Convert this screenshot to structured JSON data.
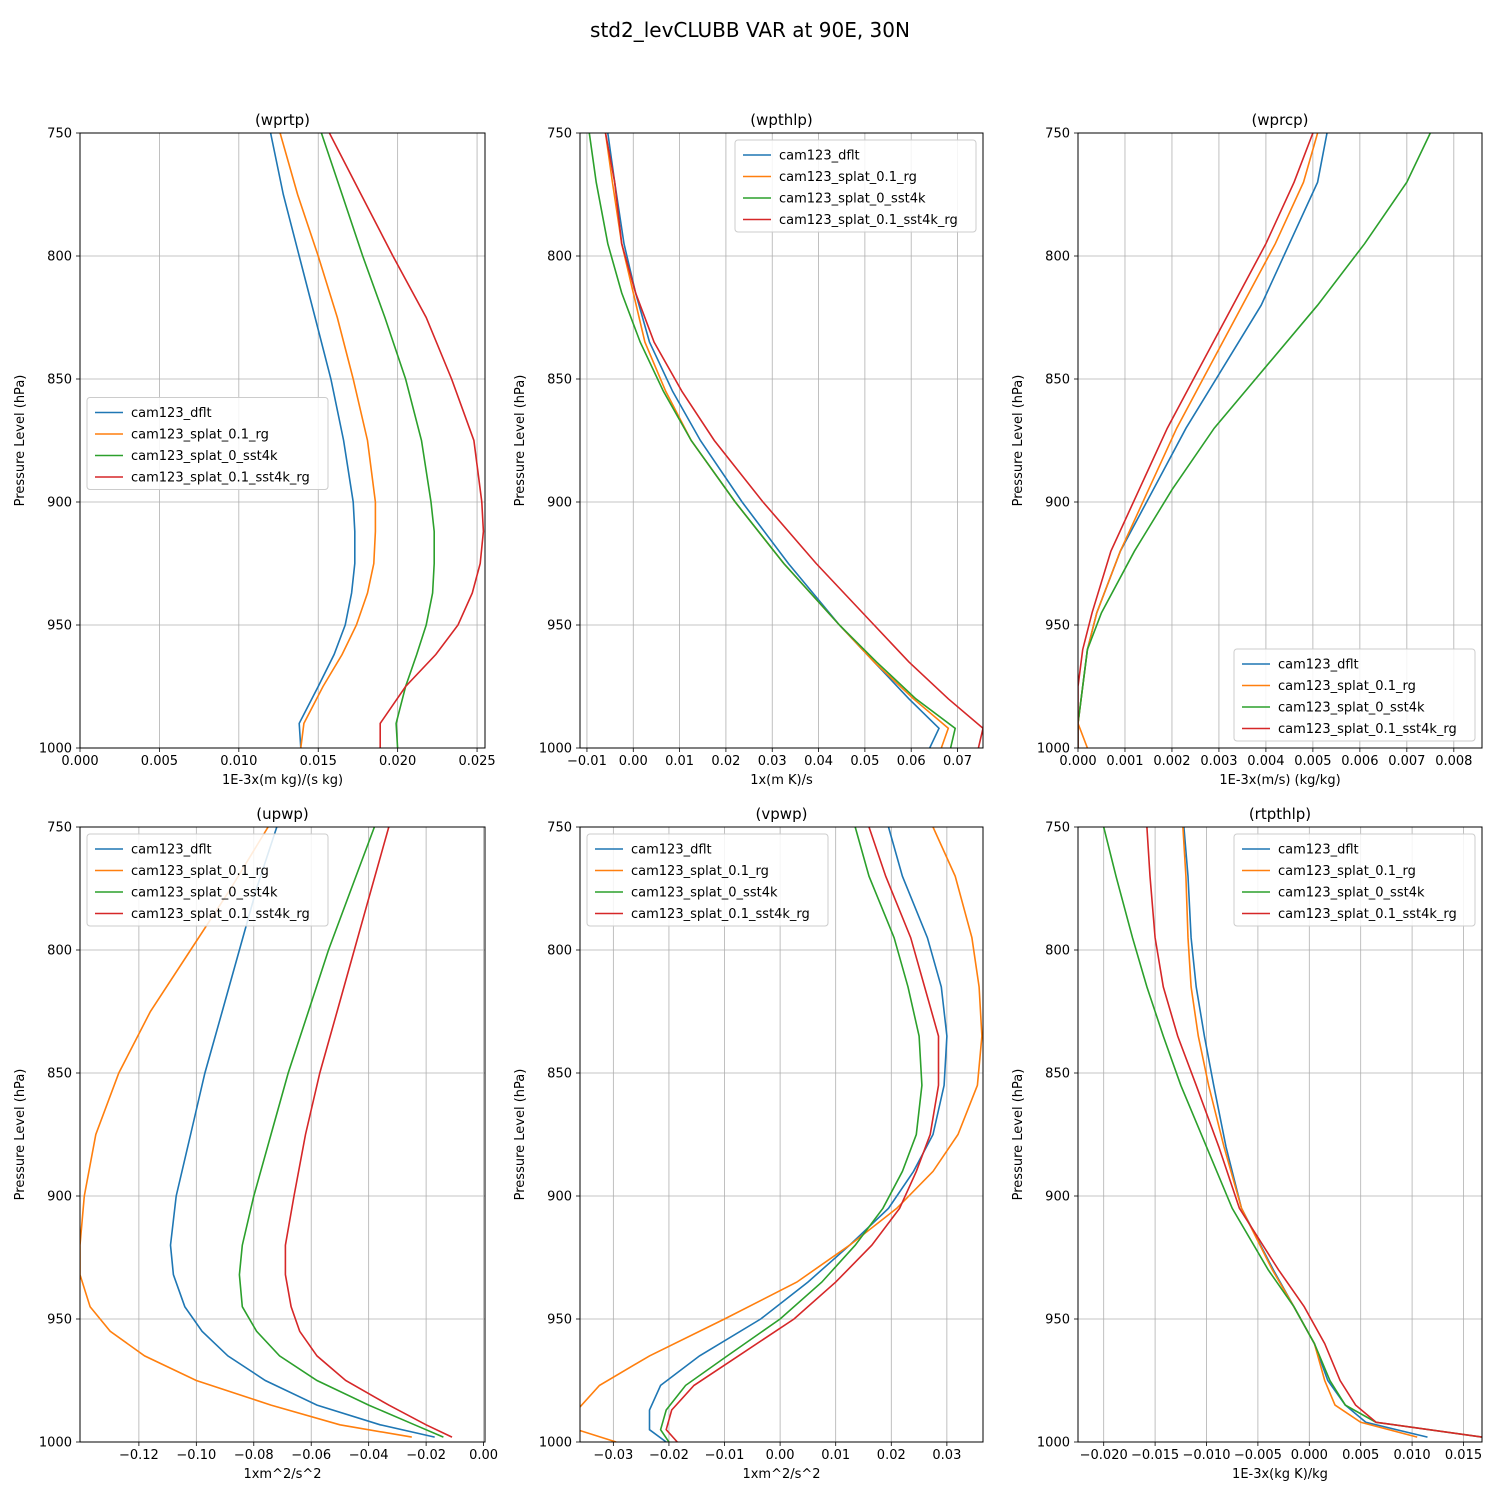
{
  "figure": {
    "title": "std2_levCLUBB VAR at 90E, 30N"
  },
  "chart_data": [
    {
      "type": "line",
      "title": "(wprtp)",
      "xlabel": "1E-3x(m kg)/(s kg)",
      "ylabel": "Pressure Level (hPa)",
      "xlim": [
        0.0,
        0.0255
      ],
      "ylim": [
        1000,
        750
      ],
      "xticks": [
        0.0,
        0.005,
        0.01,
        0.015,
        0.02,
        0.025
      ],
      "xtick_labels": [
        "0.000",
        "0.005",
        "0.010",
        "0.015",
        "0.020",
        "0.025"
      ],
      "yticks": [
        750,
        800,
        850,
        900,
        950,
        1000
      ],
      "grid": true,
      "legend": "center-left",
      "levels": [
        750,
        775,
        800,
        825,
        850,
        875,
        900,
        912,
        925,
        937,
        950,
        962,
        975,
        990,
        1000
      ],
      "series": [
        {
          "name": "cam123_dflt",
          "color": "#1f77b4",
          "values": [
            0.012,
            0.0128,
            0.0138,
            0.0148,
            0.0158,
            0.0166,
            0.0172,
            0.0173,
            0.0173,
            0.0171,
            0.0167,
            0.016,
            0.015,
            0.0138,
            0.0139
          ]
        },
        {
          "name": "cam123_splat_0.1_rg",
          "color": "#ff7f0e",
          "values": [
            0.0126,
            0.0137,
            0.015,
            0.0162,
            0.0172,
            0.0181,
            0.0186,
            0.0186,
            0.0185,
            0.0181,
            0.0174,
            0.0165,
            0.0153,
            0.0141,
            0.0139
          ]
        },
        {
          "name": "cam123_splat_0_sst4k",
          "color": "#2ca02c",
          "values": [
            0.0152,
            0.0165,
            0.0178,
            0.0192,
            0.0205,
            0.0215,
            0.0221,
            0.0223,
            0.0223,
            0.0222,
            0.0218,
            0.0212,
            0.0205,
            0.0199,
            0.02
          ]
        },
        {
          "name": "cam123_splat_0.1_sst4k_rg",
          "color": "#d62728",
          "values": [
            0.0157,
            0.0177,
            0.0197,
            0.0218,
            0.0234,
            0.0248,
            0.0253,
            0.0254,
            0.0252,
            0.0247,
            0.0238,
            0.0224,
            0.0205,
            0.0189,
            0.0189
          ]
        }
      ]
    },
    {
      "type": "line",
      "title": "(wpthlp)",
      "xlabel": "1x(m K)/s",
      "ylabel": "Pressure Level (hPa)",
      "xlim": [
        -0.0115,
        0.0755
      ],
      "ylim": [
        1000,
        750
      ],
      "xticks": [
        -0.01,
        0.0,
        0.01,
        0.02,
        0.03,
        0.04,
        0.05,
        0.06,
        0.07
      ],
      "xtick_labels": [
        "−0.01",
        "0.00",
        "0.01",
        "0.02",
        "0.03",
        "0.04",
        "0.05",
        "0.06",
        "0.07"
      ],
      "yticks": [
        750,
        800,
        850,
        900,
        950,
        1000
      ],
      "grid": true,
      "legend": "top-right",
      "levels": [
        750,
        770,
        795,
        815,
        835,
        855,
        875,
        900,
        925,
        950,
        965,
        980,
        992,
        1000
      ],
      "series": [
        {
          "name": "cam123_dflt",
          "color": "#1f77b4",
          "values": [
            -0.0055,
            -0.004,
            -0.002,
            0.0005,
            0.0035,
            0.0085,
            0.0145,
            0.0235,
            0.0335,
            0.0445,
            0.052,
            0.0595,
            0.066,
            0.064
          ]
        },
        {
          "name": "cam123_splat_0.1_rg",
          "color": "#ff7f0e",
          "values": [
            -0.006,
            -0.0045,
            -0.0025,
            0.0,
            0.0025,
            0.007,
            0.0125,
            0.022,
            0.0325,
            0.0445,
            0.052,
            0.0605,
            0.068,
            0.0665
          ]
        },
        {
          "name": "cam123_splat_0_sst4k",
          "color": "#2ca02c",
          "values": [
            -0.0095,
            -0.008,
            -0.0055,
            -0.0025,
            0.0015,
            0.0065,
            0.0125,
            0.022,
            0.0325,
            0.0445,
            0.0525,
            0.061,
            0.0695,
            0.0685
          ]
        },
        {
          "name": "cam123_splat_0.1_sst4k_rg",
          "color": "#d62728",
          "values": [
            -0.006,
            -0.004,
            -0.0025,
            0.0005,
            0.0045,
            0.0105,
            0.0175,
            0.028,
            0.0395,
            0.052,
            0.0595,
            0.068,
            0.0755,
            0.0745
          ]
        }
      ]
    },
    {
      "type": "line",
      "title": "(wprcp)",
      "xlabel": "1E-3x(m/s) (kg/kg)",
      "ylabel": "Pressure Level (hPa)",
      "xlim": [
        0.0,
        0.0086
      ],
      "ylim": [
        1000,
        750
      ],
      "xticks": [
        0.0,
        0.001,
        0.002,
        0.003,
        0.004,
        0.005,
        0.006,
        0.007,
        0.008
      ],
      "xtick_labels": [
        "0.000",
        "0.001",
        "0.002",
        "0.003",
        "0.004",
        "0.005",
        "0.006",
        "0.007",
        "0.008"
      ],
      "yticks": [
        750,
        800,
        850,
        900,
        950,
        1000
      ],
      "grid": true,
      "legend": "bottom-right",
      "levels": [
        750,
        770,
        795,
        820,
        845,
        870,
        895,
        920,
        945,
        960,
        975,
        990,
        1000
      ],
      "series": [
        {
          "name": "cam123_dflt",
          "color": "#1f77b4",
          "values": [
            0.0053,
            0.0051,
            0.0045,
            0.0039,
            0.0031,
            0.0023,
            0.0016,
            0.0009,
            0.0004,
            0.0002,
            0.0001,
            0.0,
            0.0
          ]
        },
        {
          "name": "cam123_splat_0.1_rg",
          "color": "#ff7f0e",
          "values": [
            0.0051,
            0.0048,
            0.0042,
            0.0035,
            0.0028,
            0.0021,
            0.0015,
            0.0009,
            0.0004,
            0.0002,
            0.0001,
            0.0,
            0.0002
          ]
        },
        {
          "name": "cam123_splat_0_sst4k",
          "color": "#2ca02c",
          "values": [
            0.0075,
            0.007,
            0.0061,
            0.0051,
            0.004,
            0.0029,
            0.002,
            0.0012,
            0.0005,
            0.0002,
            0.0001,
            0.0,
            0.0
          ]
        },
        {
          "name": "cam123_splat_0.1_sst4k_rg",
          "color": "#d62728",
          "values": [
            0.005,
            0.0046,
            0.004,
            0.0033,
            0.0026,
            0.0019,
            0.0013,
            0.0007,
            0.0003,
            0.0001,
            0.0,
            0.0,
            0.0
          ]
        }
      ]
    },
    {
      "type": "line",
      "title": "(upwp)",
      "xlabel": "1xm^2/s^2",
      "ylabel": "Pressure Level (hPa)",
      "xlim": [
        -0.1405,
        0.0005
      ],
      "ylim": [
        1000,
        750
      ],
      "xticks": [
        -0.12,
        -0.1,
        -0.08,
        -0.06,
        -0.04,
        -0.02,
        0.0
      ],
      "xtick_labels": [
        "−0.12",
        "−0.10",
        "−0.08",
        "−0.06",
        "−0.04",
        "−0.02",
        "0.00"
      ],
      "yticks": [
        750,
        800,
        850,
        900,
        950,
        1000
      ],
      "grid": true,
      "legend": "top-left",
      "levels": [
        750,
        775,
        800,
        825,
        850,
        875,
        900,
        920,
        932,
        945,
        955,
        965,
        975,
        985,
        993,
        998
      ],
      "series": [
        {
          "name": "cam123_dflt",
          "color": "#1f77b4",
          "values": [
            -0.072,
            -0.079,
            -0.085,
            -0.091,
            -0.097,
            -0.102,
            -0.107,
            -0.109,
            -0.108,
            -0.104,
            -0.098,
            -0.089,
            -0.076,
            -0.058,
            -0.036,
            -0.017
          ]
        },
        {
          "name": "cam123_splat_0.1_rg",
          "color": "#ff7f0e",
          "values": [
            -0.075,
            -0.088,
            -0.102,
            -0.116,
            -0.127,
            -0.135,
            -0.139,
            -0.1405,
            -0.1405,
            -0.137,
            -0.13,
            -0.118,
            -0.1,
            -0.074,
            -0.05,
            -0.025
          ]
        },
        {
          "name": "cam123_splat_0_sst4k",
          "color": "#2ca02c",
          "values": [
            -0.038,
            -0.046,
            -0.054,
            -0.061,
            -0.068,
            -0.074,
            -0.08,
            -0.084,
            -0.085,
            -0.084,
            -0.079,
            -0.071,
            -0.058,
            -0.04,
            -0.024,
            -0.014
          ]
        },
        {
          "name": "cam123_splat_0.1_sst4k_rg",
          "color": "#d62728",
          "values": [
            -0.033,
            -0.039,
            -0.045,
            -0.051,
            -0.057,
            -0.062,
            -0.066,
            -0.069,
            -0.069,
            -0.067,
            -0.064,
            -0.058,
            -0.048,
            -0.033,
            -0.02,
            -0.011
          ]
        }
      ]
    },
    {
      "type": "line",
      "title": "(vpwp)",
      "xlabel": "1xm^2/s^2",
      "ylabel": "Pressure Level (hPa)",
      "xlim": [
        -0.036,
        0.0365
      ],
      "ylim": [
        1000,
        750
      ],
      "xticks": [
        -0.03,
        -0.02,
        -0.01,
        0.0,
        0.01,
        0.02,
        0.03
      ],
      "xtick_labels": [
        "−0.03",
        "−0.02",
        "−0.01",
        "0.00",
        "0.01",
        "0.02",
        "0.03"
      ],
      "yticks": [
        750,
        800,
        850,
        900,
        950,
        1000
      ],
      "grid": true,
      "legend": "top-left",
      "levels": [
        750,
        770,
        795,
        815,
        835,
        855,
        875,
        890,
        905,
        920,
        935,
        950,
        965,
        977,
        987,
        995,
        1000
      ],
      "series": [
        {
          "name": "cam123_dflt",
          "color": "#1f77b4",
          "values": [
            0.0195,
            0.022,
            0.0265,
            0.029,
            0.03,
            0.0295,
            0.0275,
            0.024,
            0.0195,
            0.0125,
            0.005,
            -0.0035,
            -0.0145,
            -0.0215,
            -0.0235,
            -0.0235,
            -0.0205
          ]
        },
        {
          "name": "cam123_splat_0.1_rg",
          "color": "#ff7f0e",
          "values": [
            0.0275,
            0.0315,
            0.0345,
            0.0358,
            0.0363,
            0.0355,
            0.032,
            0.0275,
            0.021,
            0.0125,
            0.003,
            -0.01,
            -0.0235,
            -0.0325,
            -0.0365,
            -0.0365,
            -0.0295
          ]
        },
        {
          "name": "cam123_splat_0_sst4k",
          "color": "#2ca02c",
          "values": [
            0.0135,
            0.016,
            0.0205,
            0.023,
            0.025,
            0.0255,
            0.0245,
            0.022,
            0.0185,
            0.0135,
            0.0075,
            0.0,
            -0.0095,
            -0.017,
            -0.0205,
            -0.0215,
            -0.02
          ]
        },
        {
          "name": "cam123_splat_0.1_sst4k_rg",
          "color": "#d62728",
          "values": [
            0.016,
            0.019,
            0.0235,
            0.026,
            0.0285,
            0.0285,
            0.027,
            0.0245,
            0.0215,
            0.0165,
            0.01,
            0.0025,
            -0.0075,
            -0.0155,
            -0.0195,
            -0.0205,
            -0.0185
          ]
        }
      ]
    },
    {
      "type": "line",
      "title": "(rtpthlp)",
      "xlabel": "1E-3x(kg K)/kg",
      "ylabel": "Pressure Level (hPa)",
      "xlim": [
        -0.0225,
        0.0168
      ],
      "ylim": [
        1000,
        750
      ],
      "xticks": [
        -0.02,
        -0.015,
        -0.01,
        -0.005,
        0.0,
        0.005,
        0.01,
        0.015
      ],
      "xtick_labels": [
        "−0.020",
        "−0.015",
        "−0.010",
        "−0.005",
        "0.000",
        "0.005",
        "0.010",
        "0.015"
      ],
      "yticks": [
        750,
        800,
        850,
        900,
        950,
        1000
      ],
      "grid": true,
      "legend": "top-right",
      "levels": [
        750,
        770,
        795,
        815,
        835,
        855,
        880,
        905,
        930,
        945,
        960,
        975,
        985,
        992,
        998
      ],
      "series": [
        {
          "name": "cam123_dflt",
          "color": "#1f77b4",
          "values": [
            -0.0122,
            -0.0118,
            -0.0115,
            -0.011,
            -0.0102,
            -0.0093,
            -0.0081,
            -0.0066,
            -0.0035,
            -0.0015,
            0.0005,
            0.0018,
            0.0035,
            0.0055,
            0.0115
          ]
        },
        {
          "name": "cam123_splat_0.1_rg",
          "color": "#ff7f0e",
          "values": [
            -0.0123,
            -0.012,
            -0.0118,
            -0.0115,
            -0.0108,
            -0.0098,
            -0.0083,
            -0.0066,
            -0.0036,
            -0.0015,
            0.0005,
            0.0015,
            0.0025,
            0.005,
            0.0105
          ]
        },
        {
          "name": "cam123_splat_0_sst4k",
          "color": "#2ca02c",
          "values": [
            -0.02,
            -0.0188,
            -0.0172,
            -0.0158,
            -0.0142,
            -0.0125,
            -0.01,
            -0.0075,
            -0.004,
            -0.0015,
            0.0005,
            0.002,
            0.0035,
            0.0065,
            0.0168
          ]
        },
        {
          "name": "cam123_splat_0.1_sst4k_rg",
          "color": "#d62728",
          "values": [
            -0.0158,
            -0.0155,
            -0.015,
            -0.0142,
            -0.0128,
            -0.011,
            -0.0088,
            -0.0068,
            -0.003,
            -0.0005,
            0.0015,
            0.003,
            0.0045,
            0.0065,
            0.0168
          ]
        }
      ]
    }
  ]
}
